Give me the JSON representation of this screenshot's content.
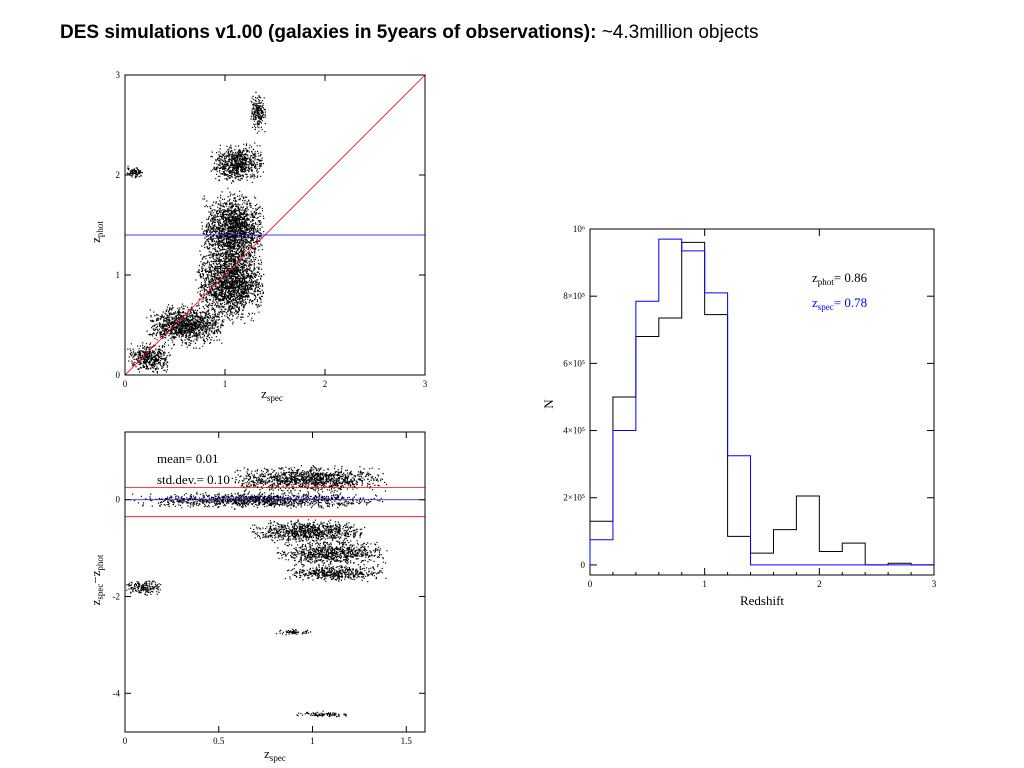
{
  "title": {
    "bold": "DES simulations v1.00 (galaxies in 5years of observations):",
    "normal": " ~4.3million objects"
  },
  "colors": {
    "red": "#ff0000",
    "blue": "#0000ff",
    "black": "#000000"
  },
  "chart_data": [
    {
      "id": "zphot-vs-zspec",
      "type": "scatter",
      "xlabel": "z",
      "xlabel_sub": "spec",
      "ylabel": "z",
      "ylabel_sub": "phot",
      "xlim": [
        0,
        3
      ],
      "ylim": [
        0,
        3
      ],
      "xticks": [
        0,
        1,
        2,
        3
      ],
      "yticks": [
        0,
        1,
        2,
        3
      ],
      "reference_lines": [
        {
          "kind": "diagonal",
          "from": [
            0,
            0
          ],
          "to": [
            3,
            3
          ],
          "color": "red"
        },
        {
          "kind": "horizontal",
          "y": 1.4,
          "color": "blue"
        }
      ],
      "density_regions": [
        {
          "x": [
            0.02,
            0.45
          ],
          "y": [
            0.0,
            0.35
          ]
        },
        {
          "x": [
            0.2,
            1.0
          ],
          "y": [
            0.25,
            0.75
          ]
        },
        {
          "x": [
            0.7,
            1.4
          ],
          "y": [
            0.45,
            1.4
          ]
        },
        {
          "x": [
            0.75,
            1.4
          ],
          "y": [
            1.0,
            1.9
          ]
        },
        {
          "x": [
            0.85,
            1.4
          ],
          "y": [
            1.9,
            2.35
          ]
        },
        {
          "x": [
            1.25,
            1.4
          ],
          "y": [
            2.4,
            2.85
          ]
        },
        {
          "x": [
            0.0,
            0.18
          ],
          "y": [
            1.95,
            2.1
          ]
        }
      ]
    },
    {
      "id": "residual-vs-zspec",
      "type": "scatter",
      "xlabel": "z",
      "xlabel_sub": "spec",
      "ylabel": "z",
      "ylabel_sub": "spec",
      "ylabel_mid": "−z",
      "ylabel_sub2": "phot",
      "xlim": [
        0,
        1.6
      ],
      "ylim": [
        -4.8,
        1.4
      ],
      "xticks": [
        0,
        0.5,
        1,
        1.5
      ],
      "yticks": [
        0,
        -2,
        -4
      ],
      "tick_labels_x": [
        "0",
        "0.5",
        "1",
        "1.5"
      ],
      "reference_lines": [
        {
          "kind": "horizontal",
          "y": 0.25,
          "color": "red"
        },
        {
          "kind": "horizontal",
          "y": -0.35,
          "color": "red"
        },
        {
          "kind": "horizontal",
          "y": 0.0,
          "color": "blue"
        }
      ],
      "annotations": [
        "mean= 0.01",
        "std.dev.= 0.10"
      ],
      "density_regions": [
        {
          "x": [
            0.02,
            1.4
          ],
          "y": [
            -0.2,
            0.2
          ]
        },
        {
          "x": [
            0.55,
            1.4
          ],
          "y": [
            0.1,
            0.75
          ]
        },
        {
          "x": [
            0.65,
            1.3
          ],
          "y": [
            -0.95,
            -0.35
          ]
        },
        {
          "x": [
            0.8,
            1.4
          ],
          "y": [
            -1.4,
            -0.8
          ]
        },
        {
          "x": [
            0.85,
            1.4
          ],
          "y": [
            -1.7,
            -1.3
          ]
        },
        {
          "x": [
            0.0,
            0.2
          ],
          "y": [
            -2.0,
            -1.6
          ]
        },
        {
          "x": [
            0.8,
            1.0
          ],
          "y": [
            -2.8,
            -2.65
          ]
        },
        {
          "x": [
            0.9,
            1.2
          ],
          "y": [
            -4.5,
            -4.35
          ]
        }
      ]
    },
    {
      "id": "redshift-histogram",
      "type": "histogram",
      "xlabel": "Redshift",
      "ylabel": "N",
      "xlim": [
        0,
        3
      ],
      "ylim": [
        -0.3,
        10
      ],
      "xticks": [
        0,
        1,
        2,
        3
      ],
      "ytick_values": [
        0,
        2,
        4,
        6,
        8,
        10
      ],
      "ytick_labels": [
        "0",
        "2×10⁵",
        "4×10⁵",
        "6×10⁵",
        "8×10⁵",
        "10⁶"
      ],
      "bin_edges": [
        0,
        0.2,
        0.4,
        0.6,
        0.8,
        1.0,
        1.2,
        1.4,
        1.6,
        1.8,
        2.0,
        2.2,
        2.4,
        2.6,
        2.8,
        3.0
      ],
      "series": [
        {
          "name": "z_phot",
          "color": "black",
          "values": [
            1.3,
            5.0,
            6.8,
            7.35,
            9.6,
            7.45,
            0.85,
            0.35,
            1.05,
            2.05,
            0.4,
            0.65,
            0.0,
            0.05,
            0.0
          ]
        },
        {
          "name": "z_spec",
          "color": "blue",
          "values": [
            0.75,
            4.0,
            7.85,
            9.7,
            9.35,
            8.1,
            3.25,
            0.0,
            0.0,
            0.0,
            0.0,
            0.0,
            0.0,
            0.0,
            0.0
          ]
        }
      ],
      "legend": [
        {
          "label": "z",
          "sub": "phot",
          "value": "=  0.86",
          "color": "black"
        },
        {
          "label": "z",
          "sub": "spec",
          "value": "=  0.78",
          "color": "blue"
        }
      ]
    }
  ]
}
